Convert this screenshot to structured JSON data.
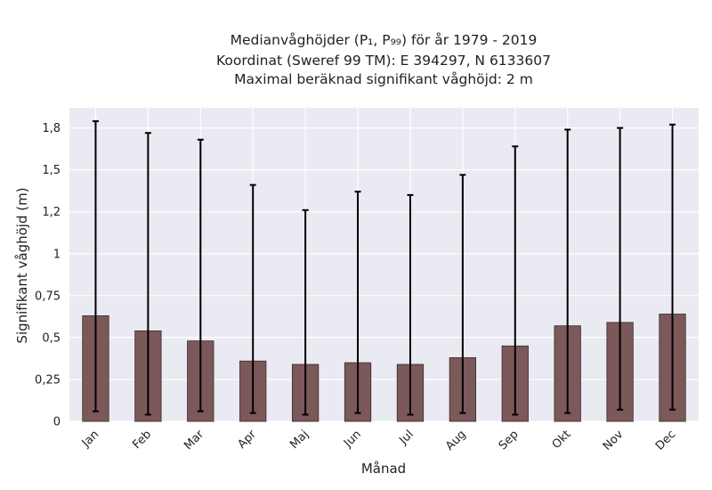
{
  "chart_data": {
    "type": "bar",
    "title_lines": [
      "Medianvåghöjder (P₁, P₉₉) för år 1979 - 2019",
      "Koordinat (Sweref 99 TM): E 394297, N 6133607",
      "Maximal beräknad signifikant våghöjd: 2 m"
    ],
    "xlabel": "Månad",
    "ylabel": "Signifikant våghöjd (m)",
    "categories": [
      "Jan",
      "Feb",
      "Mar",
      "Apr",
      "Maj",
      "Jun",
      "Jul",
      "Aug",
      "Sep",
      "Okt",
      "Nov",
      "Dec"
    ],
    "series": [
      {
        "values": [
          0.63,
          0.54,
          0.48,
          0.36,
          0.34,
          0.35,
          0.34,
          0.38,
          0.45,
          0.57,
          0.59,
          0.64
        ],
        "p1": [
          0.06,
          0.04,
          0.06,
          0.05,
          0.04,
          0.05,
          0.04,
          0.05,
          0.04,
          0.05,
          0.07,
          0.07
        ],
        "p99": [
          1.79,
          1.72,
          1.68,
          1.41,
          1.26,
          1.37,
          1.35,
          1.47,
          1.64,
          1.74,
          1.75,
          1.77
        ]
      }
    ],
    "ylim": [
      0,
      1.87
    ],
    "yticks": [
      0,
      0.25,
      0.5,
      0.75,
      1,
      1.25,
      1.5,
      1.75
    ],
    "ytick_labels": [
      "0",
      "0,25",
      "0,5",
      "0,75",
      "1",
      "1,2",
      "1,5",
      "1,8"
    ],
    "grid": true,
    "colors": {
      "bar": "#7b5859",
      "bar_edge": "#3a2a2a",
      "error": "#000000",
      "plot_bg": "#eaeaf2",
      "grid": "#ffffff"
    }
  }
}
